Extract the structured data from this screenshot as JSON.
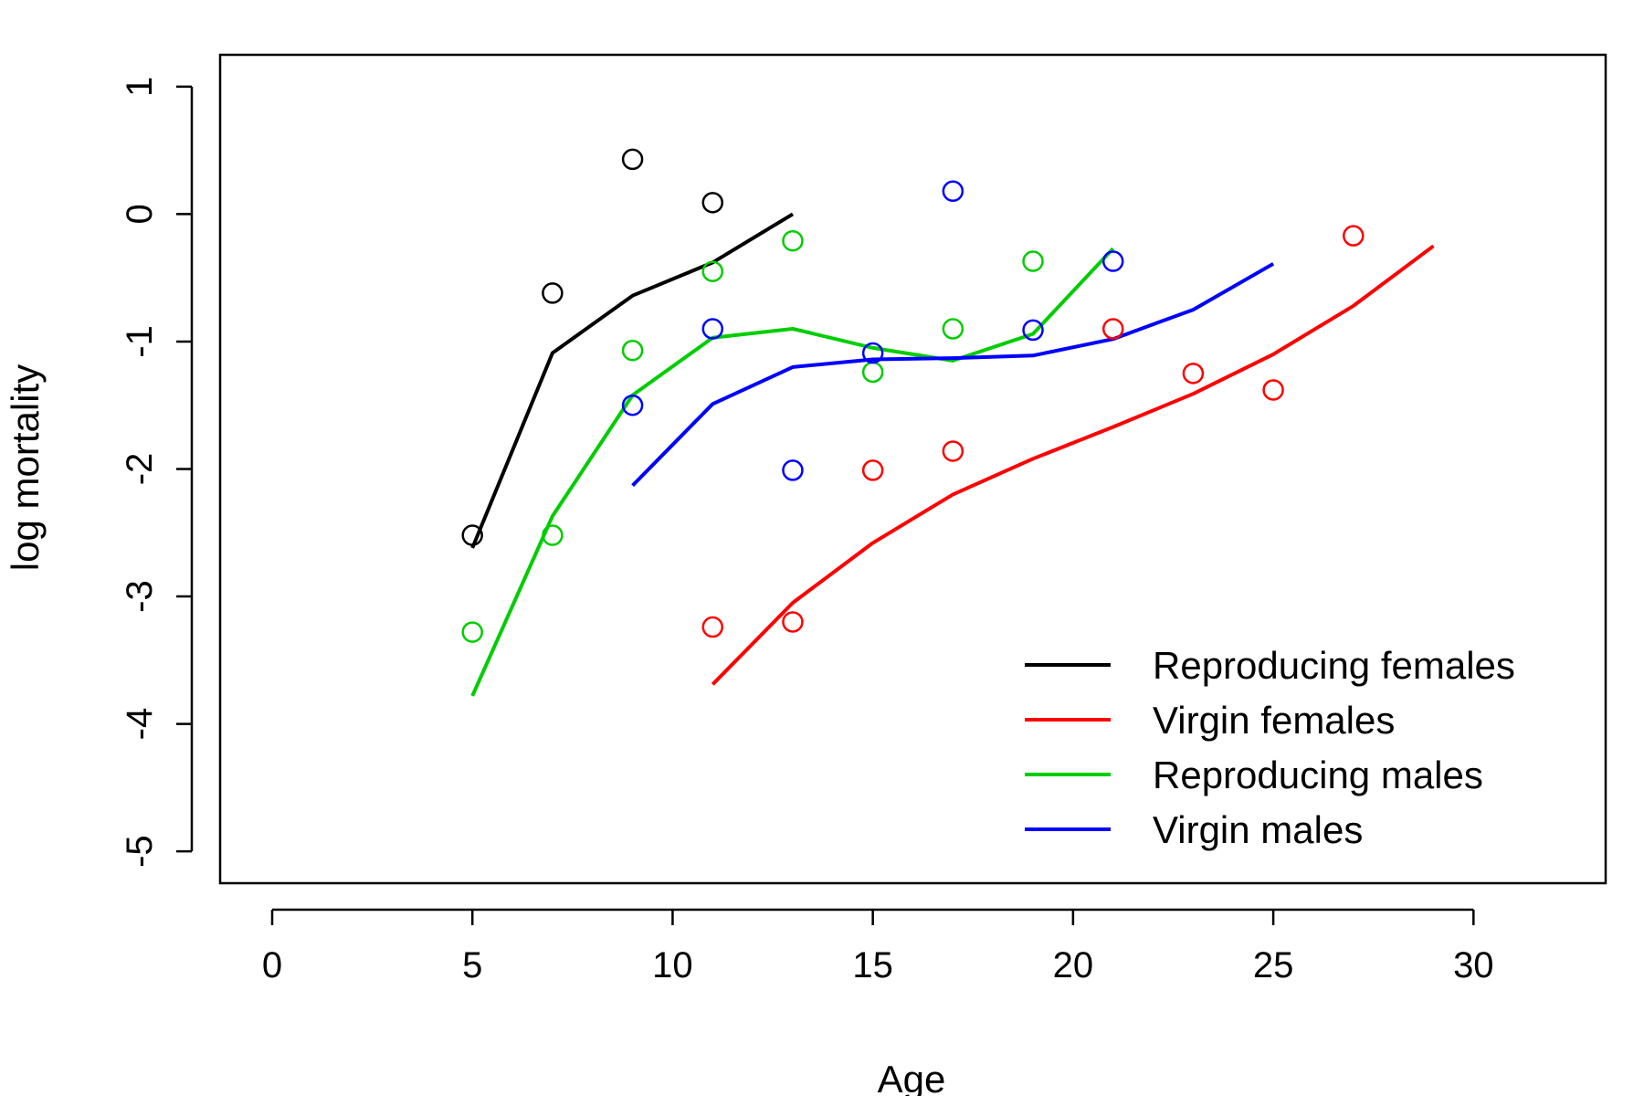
{
  "chart_data": {
    "type": "line",
    "title": "",
    "xlabel": "Age",
    "ylabel": "log mortality",
    "xlim": [
      -1.3,
      33.3
    ],
    "ylim": [
      -5.25,
      1.25
    ],
    "xticks": [
      0,
      5,
      10,
      15,
      20,
      25,
      30
    ],
    "yticks": [
      1,
      0,
      -1,
      -2,
      -3,
      -4,
      -5
    ],
    "xtick_labels": [
      "0",
      "5",
      "10",
      "15",
      "20",
      "25",
      "30"
    ],
    "ytick_labels": [
      "1",
      "0",
      "-1",
      "-2",
      "-3",
      "-4",
      "-5"
    ],
    "grid": false,
    "legend_position": "bottom-right",
    "series": [
      {
        "name": "Reproducing females",
        "color": "#000000",
        "points": {
          "x": [
            5,
            7,
            9,
            11
          ],
          "y": [
            -2.52,
            -0.62,
            0.43,
            0.09
          ]
        },
        "fit": {
          "x": [
            5,
            7,
            9,
            11,
            13
          ],
          "y": [
            -2.62,
            -1.09,
            -0.64,
            -0.38,
            0.0
          ]
        }
      },
      {
        "name": "Virgin females",
        "color": "#ff0000",
        "points": {
          "x": [
            11,
            13,
            15,
            17,
            21,
            23,
            25,
            27
          ],
          "y": [
            -3.24,
            -3.2,
            -2.01,
            -1.86,
            -0.9,
            -1.25,
            -1.38,
            -0.17
          ]
        },
        "fit": {
          "x": [
            11,
            13,
            15,
            17,
            19,
            21,
            23,
            25,
            27,
            29
          ],
          "y": [
            -3.69,
            -3.05,
            -2.58,
            -2.2,
            -1.92,
            -1.67,
            -1.41,
            -1.1,
            -0.72,
            -0.25
          ]
        }
      },
      {
        "name": "Reproducing males",
        "color": "#00cd00",
        "points": {
          "x": [
            5,
            7,
            9,
            11,
            13,
            15,
            17,
            19
          ],
          "y": [
            -3.28,
            -2.52,
            -1.07,
            -0.45,
            -0.21,
            -1.24,
            -0.9,
            -0.37
          ]
        },
        "fit": {
          "x": [
            5,
            7,
            9,
            11,
            13,
            15,
            17,
            19,
            21
          ],
          "y": [
            -3.78,
            -2.37,
            -1.42,
            -0.97,
            -0.9,
            -1.05,
            -1.15,
            -0.94,
            -0.27
          ]
        }
      },
      {
        "name": "Virgin males",
        "color": "#0000ff",
        "points": {
          "x": [
            9,
            11,
            13,
            15,
            17,
            19,
            21
          ],
          "y": [
            -1.5,
            -0.9,
            -2.01,
            -1.09,
            0.18,
            -0.91,
            -0.37
          ]
        },
        "fit": {
          "x": [
            9,
            11,
            13,
            15,
            17,
            19,
            21,
            23,
            25
          ],
          "y": [
            -2.13,
            -1.49,
            -1.2,
            -1.14,
            -1.13,
            -1.11,
            -0.98,
            -0.75,
            -0.39
          ]
        }
      }
    ]
  }
}
